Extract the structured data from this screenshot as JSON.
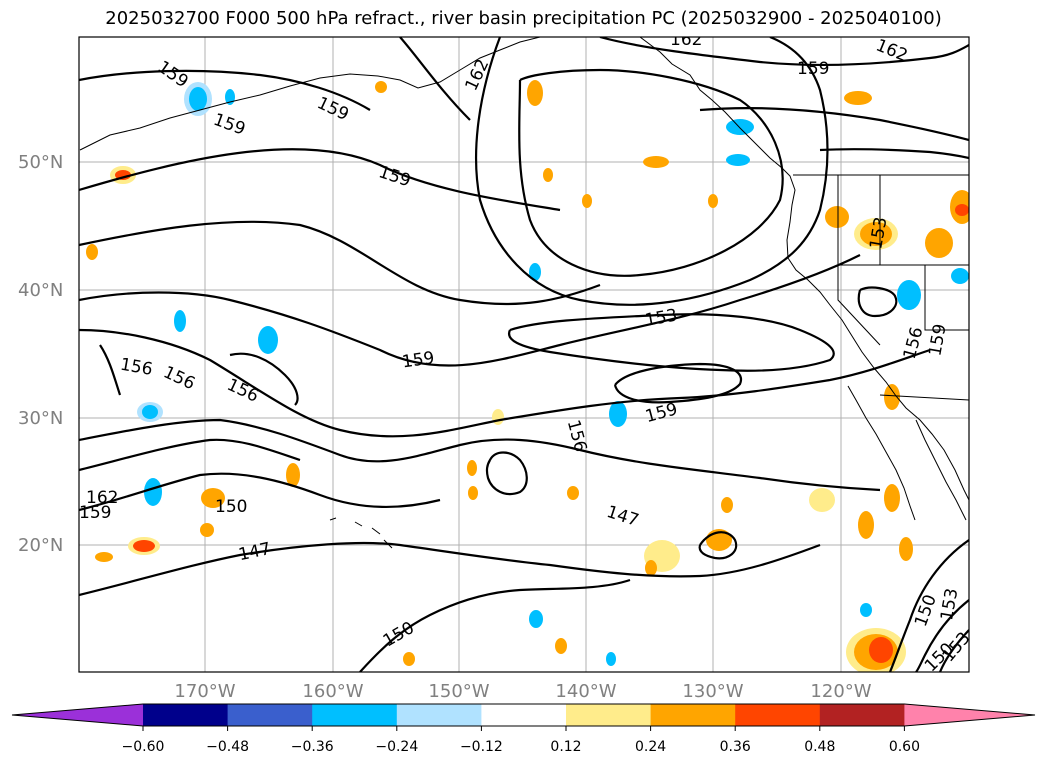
{
  "title": "2025032700 F000 500 hPa refract., river basin precipitation PC (2025032900 - 2025040100)",
  "map": {
    "lat_labels": [
      "50°N",
      "40°N",
      "30°N",
      "20°N"
    ],
    "lon_labels": [
      "170°W",
      "160°W",
      "150°W",
      "140°W",
      "130°W",
      "120°W"
    ],
    "contour_labels": [
      "162",
      "159",
      "159",
      "159",
      "162",
      "159",
      "159",
      "162",
      "153",
      "159",
      "156",
      "156",
      "156",
      "159",
      "156",
      "153",
      "156",
      "159",
      "162",
      "159",
      "150",
      "147",
      "147",
      "150",
      "150",
      "153",
      "150",
      "153"
    ],
    "grid": true,
    "colors": {
      "contour": "#000000",
      "grid": "#b0b0b0"
    }
  },
  "colorbar": {
    "ticks": [
      "−0.60",
      "−0.48",
      "−0.36",
      "−0.24",
      "−0.12",
      "0.12",
      "0.24",
      "0.36",
      "0.48",
      "0.60"
    ],
    "colors": [
      "#9b30d9",
      "#00008b",
      "#3a5fcd",
      "#00bfff",
      "#b0e2ff",
      "#ffffff",
      "#ffec8b",
      "#ffa500",
      "#ff4500",
      "#b22222",
      "#ff82ab"
    ],
    "extend": "both"
  }
}
